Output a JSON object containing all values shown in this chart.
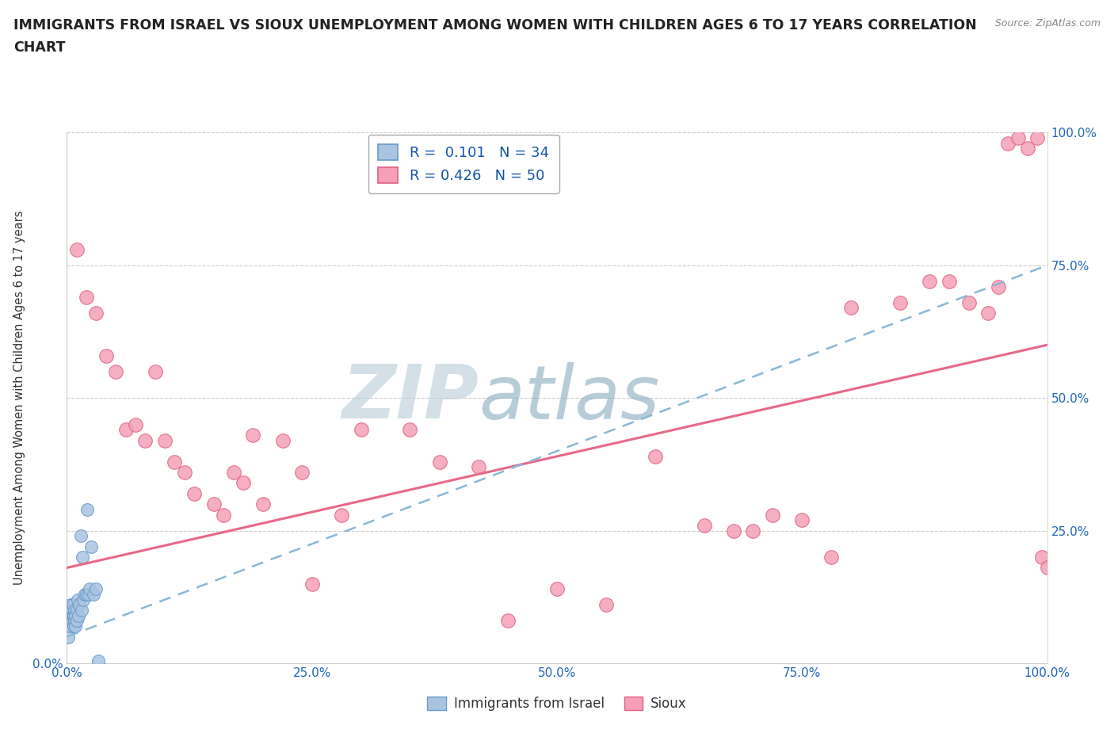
{
  "title_line1": "IMMIGRANTS FROM ISRAEL VS SIOUX UNEMPLOYMENT AMONG WOMEN WITH CHILDREN AGES 6 TO 17 YEARS CORRELATION",
  "title_line2": "CHART",
  "source": "Source: ZipAtlas.com",
  "ylabel": "Unemployment Among Women with Children Ages 6 to 17 years",
  "xlim": [
    0.0,
    100.0
  ],
  "ylim": [
    0.0,
    100.0
  ],
  "xtick_labels": [
    "0.0%",
    "25.0%",
    "50.0%",
    "75.0%",
    "100.0%"
  ],
  "xtick_positions": [
    0.0,
    25.0,
    50.0,
    75.0,
    100.0
  ],
  "right_ytick_labels": [
    "25.0%",
    "50.0%",
    "75.0%",
    "100.0%"
  ],
  "right_ytick_positions": [
    25.0,
    50.0,
    75.0,
    100.0
  ],
  "left_ytick_labels": [
    "0.0%"
  ],
  "left_ytick_positions": [
    0.0
  ],
  "israel_color": "#aac4e0",
  "israel_edge_color": "#6699cc",
  "sioux_color": "#f5a0b8",
  "sioux_edge_color": "#e06080",
  "israel_R": 0.101,
  "israel_N": 34,
  "sioux_R": 0.426,
  "sioux_N": 50,
  "israel_line_color": "#88b8d8",
  "sioux_line_color": "#e86888",
  "watermark_zip": "ZIP",
  "watermark_atlas": "atlas",
  "watermark_color_zip": "#b8ccd8",
  "watermark_color_atlas": "#88aac0",
  "grid_color": "#cccccc",
  "tick_color": "#2266bb",
  "israel_line_intercept": 5.0,
  "israel_line_slope": 0.7,
  "sioux_line_intercept": 18.0,
  "sioux_line_slope": 0.42,
  "sioux_scatter_x": [
    1.0,
    2.0,
    3.0,
    4.0,
    5.0,
    6.0,
    7.0,
    8.0,
    9.0,
    10.0,
    11.0,
    12.0,
    13.0,
    15.0,
    16.0,
    17.0,
    18.0,
    19.0,
    20.0,
    22.0,
    24.0,
    25.0,
    28.0,
    30.0,
    35.0,
    38.0,
    42.0,
    45.0,
    50.0,
    55.0,
    60.0,
    65.0,
    68.0,
    70.0,
    72.0,
    75.0,
    78.0,
    80.0,
    85.0,
    88.0,
    90.0,
    92.0,
    94.0,
    95.0,
    96.0,
    97.0,
    98.0,
    99.0,
    99.5,
    100.0
  ],
  "sioux_scatter_y": [
    78.0,
    69.0,
    66.0,
    58.0,
    55.0,
    44.0,
    45.0,
    42.0,
    55.0,
    42.0,
    38.0,
    36.0,
    32.0,
    30.0,
    28.0,
    36.0,
    34.0,
    43.0,
    30.0,
    42.0,
    36.0,
    15.0,
    28.0,
    44.0,
    44.0,
    38.0,
    37.0,
    8.0,
    14.0,
    11.0,
    39.0,
    26.0,
    25.0,
    25.0,
    28.0,
    27.0,
    20.0,
    67.0,
    68.0,
    72.0,
    72.0,
    68.0,
    66.0,
    71.0,
    98.0,
    99.0,
    97.0,
    99.0,
    20.0,
    18.0
  ],
  "israel_scatter_x": [
    0.1,
    0.2,
    0.3,
    0.3,
    0.4,
    0.4,
    0.5,
    0.5,
    0.6,
    0.6,
    0.7,
    0.7,
    0.8,
    0.8,
    0.9,
    0.9,
    1.0,
    1.0,
    1.1,
    1.2,
    1.3,
    1.4,
    1.5,
    1.6,
    1.7,
    1.8,
    2.0,
    2.1,
    2.2,
    2.3,
    2.5,
    2.7,
    3.0,
    3.2
  ],
  "israel_scatter_y": [
    5.0,
    8.0,
    10.0,
    7.0,
    9.0,
    11.0,
    8.0,
    10.0,
    9.0,
    11.0,
    7.0,
    9.0,
    8.0,
    10.0,
    9.0,
    7.0,
    10.0,
    8.0,
    12.0,
    9.0,
    11.0,
    24.0,
    10.0,
    20.0,
    12.0,
    13.0,
    13.0,
    29.0,
    13.0,
    14.0,
    22.0,
    13.0,
    14.0,
    0.5
  ]
}
